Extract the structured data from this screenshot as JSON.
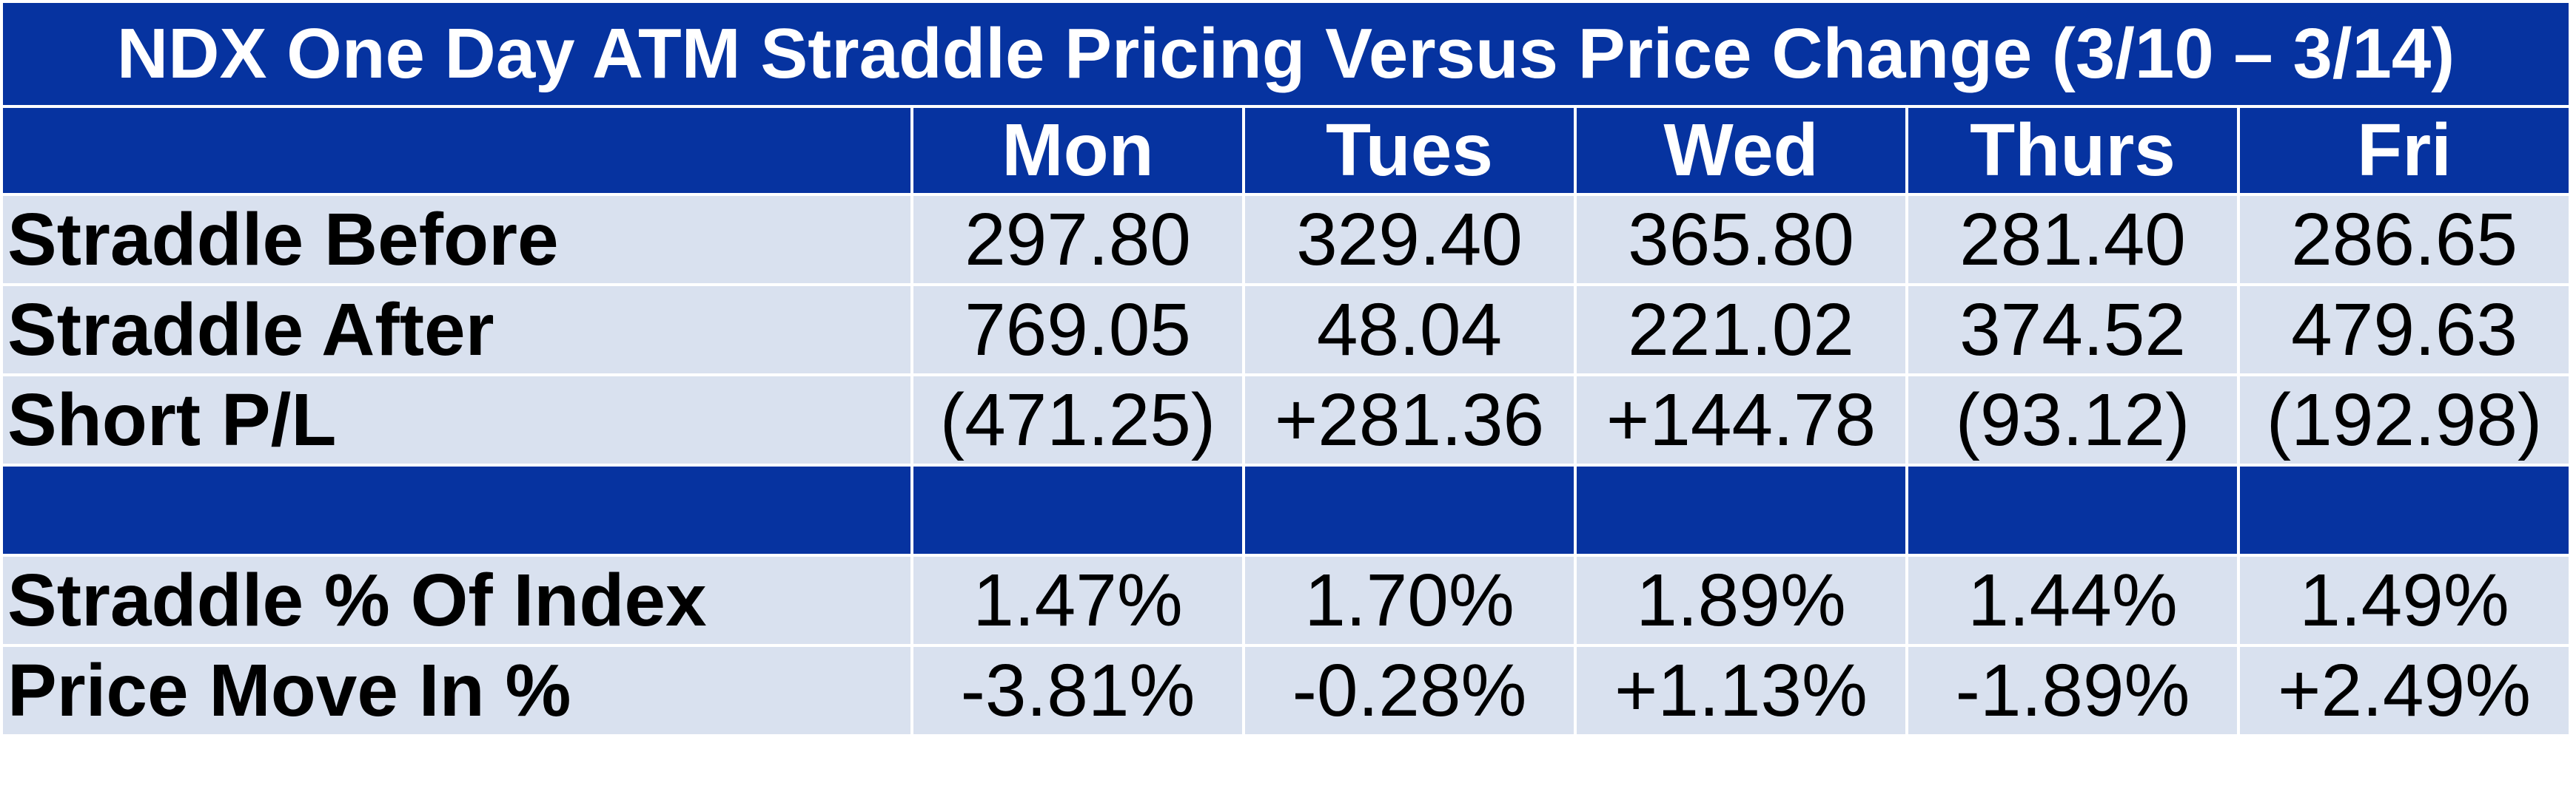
{
  "title": "NDX One Day ATM Straddle Pricing Versus Price Change (3/10 – 3/14)",
  "columns": [
    "Mon",
    "Tues",
    "Wed",
    "Thurs",
    "Fri"
  ],
  "rows": [
    {
      "label": "Straddle Before",
      "cells": [
        {
          "text": "297.80",
          "tone": "neu"
        },
        {
          "text": "329.40",
          "tone": "neu"
        },
        {
          "text": "365.80",
          "tone": "neu"
        },
        {
          "text": "281.40",
          "tone": "neu"
        },
        {
          "text": "286.65",
          "tone": "neu"
        }
      ]
    },
    {
      "label": "Straddle After",
      "cells": [
        {
          "text": "769.05",
          "tone": "neu"
        },
        {
          "text": "48.04",
          "tone": "neu"
        },
        {
          "text": "221.02",
          "tone": "neu"
        },
        {
          "text": "374.52",
          "tone": "neu"
        },
        {
          "text": "479.63",
          "tone": "neu"
        }
      ]
    },
    {
      "label": "Short P/L",
      "cells": [
        {
          "text": "(471.25)",
          "tone": "neg"
        },
        {
          "text": "+281.36",
          "tone": "pos"
        },
        {
          "text": "+144.78",
          "tone": "pos"
        },
        {
          "text": "(93.12)",
          "tone": "neg"
        },
        {
          "text": "(192.98)",
          "tone": "neg"
        }
      ]
    },
    {
      "label": "Straddle % Of Index",
      "cells": [
        {
          "text": "1.47%",
          "tone": "neu"
        },
        {
          "text": "1.70%",
          "tone": "neu"
        },
        {
          "text": "1.89%",
          "tone": "neu"
        },
        {
          "text": "1.44%",
          "tone": "neu"
        },
        {
          "text": "1.49%",
          "tone": "neu"
        }
      ]
    },
    {
      "label": "Price Move In %",
      "cells": [
        {
          "text": "-3.81%",
          "tone": "neg"
        },
        {
          "text": "-0.28%",
          "tone": "neg"
        },
        {
          "text": "+1.13%",
          "tone": "pos"
        },
        {
          "text": "-1.89%",
          "tone": "neg"
        },
        {
          "text": "+2.49%",
          "tone": "pos"
        }
      ]
    }
  ],
  "colors": {
    "header_bg": "#0633a0",
    "row_bg": "#d9e1ef",
    "negative": "#c00000",
    "positive": "#008000"
  }
}
